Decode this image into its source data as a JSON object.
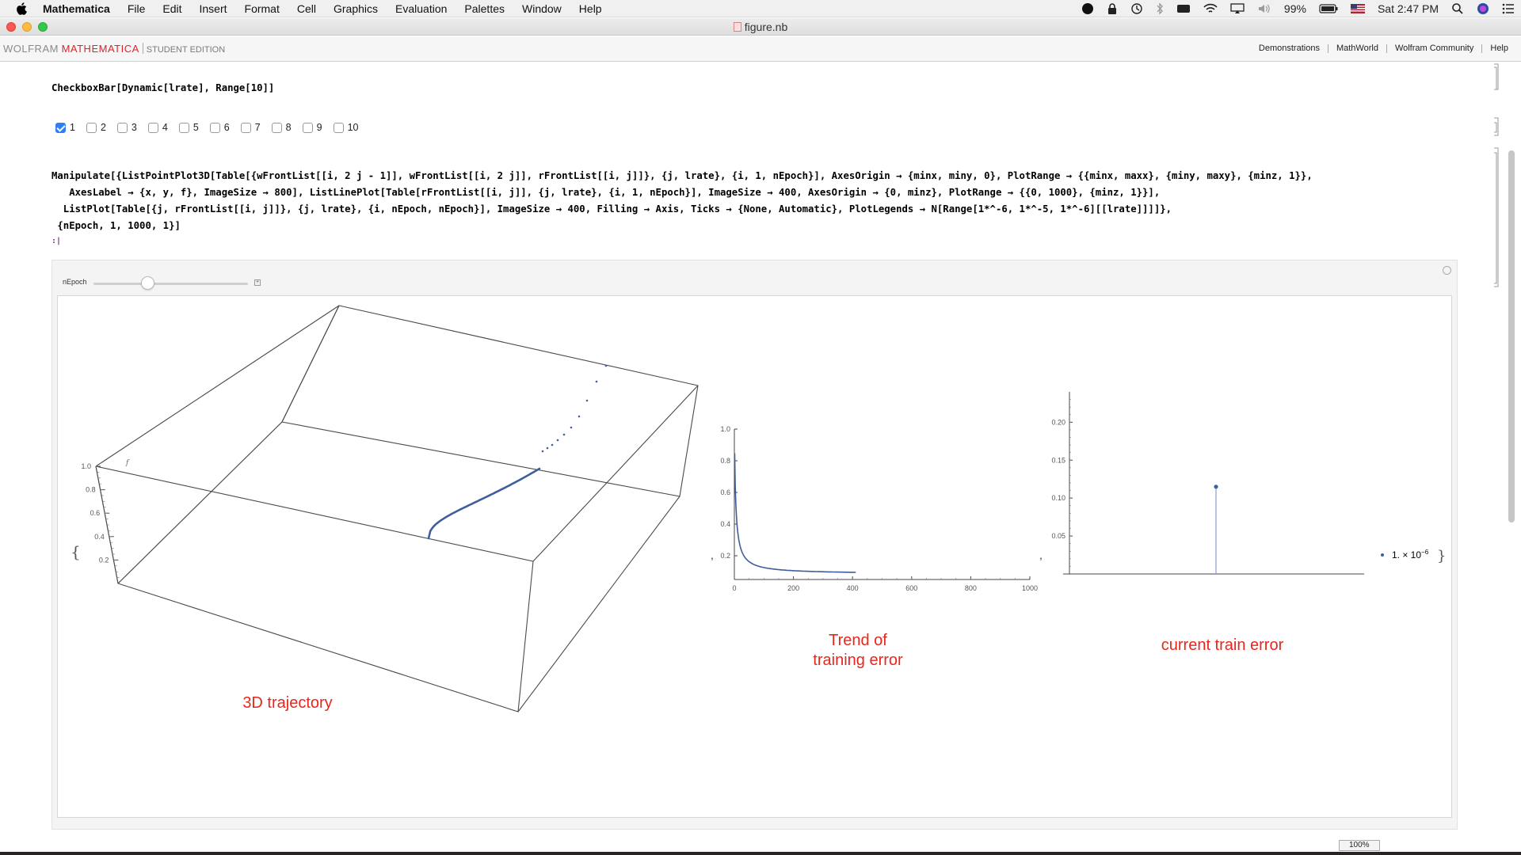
{
  "menubar": {
    "app": "Mathematica",
    "items": [
      "File",
      "Edit",
      "Insert",
      "Format",
      "Cell",
      "Graphics",
      "Evaluation",
      "Palettes",
      "Window",
      "Help"
    ],
    "battery": "99%",
    "clock": "Sat 2:47 PM"
  },
  "window": {
    "title": "figure.nb"
  },
  "toolbar": {
    "brand_wolfram": "WOLFRAM",
    "brand_mathematica": "MATHEMATICA",
    "brand_edition": "STUDENT EDITION",
    "links": [
      "Demonstrations",
      "MathWorld",
      "Wolfram Community",
      "Help"
    ]
  },
  "cells": {
    "input1": "CheckboxBar[Dynamic[lrate], Range[10]]",
    "checkboxes": [
      {
        "label": "1",
        "checked": true
      },
      {
        "label": "2",
        "checked": false
      },
      {
        "label": "3",
        "checked": false
      },
      {
        "label": "4",
        "checked": false
      },
      {
        "label": "5",
        "checked": false
      },
      {
        "label": "6",
        "checked": false
      },
      {
        "label": "7",
        "checked": false
      },
      {
        "label": "8",
        "checked": false
      },
      {
        "label": "9",
        "checked": false
      },
      {
        "label": "10",
        "checked": false
      }
    ],
    "input2_line1": "Manipulate[{ListPointPlot3D[Table[{wFrontList[[i, 2 j - 1]], wFrontList[[i, 2 j]], rFrontList[[i, j]]}, {j, lrate}, {i, 1, nEpoch}], AxesOrigin → {minx, miny, 0}, PlotRange → {{minx, maxx}, {miny, maxy}, {minz, 1}},",
    "input2_line2": "   AxesLabel → {x, y, f}, ImageSize → 800], ListLinePlot[Table[rFrontList[[i, j]], {j, lrate}, {i, 1, nEpoch}], ImageSize → 400, AxesOrigin → {0, minz}, PlotRange → {{0, 1000}, {minz, 1}}],",
    "input2_line3": "  ListPlot[Table[{j, rFrontList[[i, j]]}, {j, lrate}, {i, nEpoch, nEpoch}], ImageSize → 400, Filling → Axis, Ticks → {None, Automatic}, PlotLegends → N[Range[1*^-6, 1*^-5, 1*^-6][[lrate]]]]},",
    "input2_line4": " {nEpoch, 1, 1000, 1}]",
    "cursor": ":|"
  },
  "manipulate": {
    "slider_label": "nEpoch",
    "slider_fraction": 0.35
  },
  "plot3d": {
    "axis_label_f": "f",
    "z_ticks": [
      "0.2",
      "0.4",
      "0.6",
      "0.8",
      "1.0"
    ],
    "annotation": "3D trajectory",
    "brace": "{"
  },
  "plot2": {
    "x_ticks": [
      "0",
      "200",
      "400",
      "600",
      "800",
      "1000"
    ],
    "y_ticks": [
      "0.2",
      "0.4",
      "0.6",
      "0.8",
      "1.0"
    ],
    "annotation_line1": "Trend of",
    "annotation_line2": "training error",
    "comma": ","
  },
  "plot3": {
    "y_ticks": [
      "0.05",
      "0.10",
      "0.15",
      "0.20"
    ],
    "legend": "1. × 10",
    "legend_exp": "−6",
    "annotation": "current train error",
    "comma": ",",
    "brace": "}",
    "point_value": 0.115
  },
  "status": {
    "zoom": "100%"
  },
  "colors": {
    "series": "#3f5f9a",
    "annotation": "#e8261c",
    "brand_red": "#d9262b"
  }
}
